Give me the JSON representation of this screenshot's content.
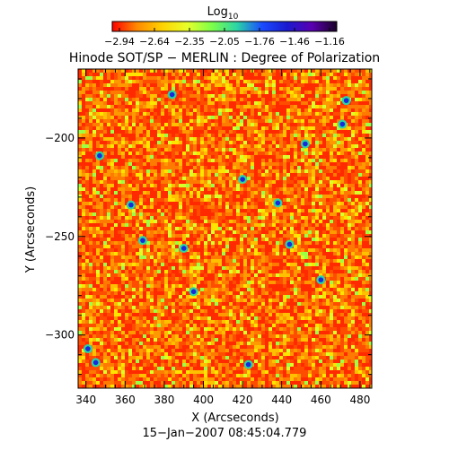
{
  "colorbar": {
    "label_main": "Log",
    "label_sub": "10",
    "tick_labels": [
      "−2.94",
      "−2.64",
      "−2.35",
      "−2.05",
      "−1.76",
      "−1.46",
      "−1.16"
    ],
    "range": [
      -2.94,
      -1.16
    ],
    "colors": [
      "#ff0000",
      "#ff8a00",
      "#ffd200",
      "#e8ff2a",
      "#7cff4a",
      "#2ad4a6",
      "#1a4cff",
      "#1a1ad0",
      "#5a00b0",
      "#1a0028"
    ]
  },
  "chart_data": {
    "type": "heatmap",
    "title": "Hinode SOT/SP − MERLIN : Degree of Polarization",
    "xlabel": "X (Arcseconds)",
    "ylabel": "Y (Arcseconds)",
    "xlim": [
      336,
      486
    ],
    "ylim": [
      -327,
      -165
    ],
    "x_ticks": [
      340,
      360,
      380,
      400,
      420,
      440,
      460,
      480
    ],
    "y_ticks": [
      -200,
      -250,
      -300
    ],
    "x_tick_labels": [
      "340",
      "360",
      "380",
      "400",
      "420",
      "440",
      "460",
      "480"
    ],
    "y_tick_labels": [
      "−200",
      "−250",
      "−300"
    ],
    "value_scale": "log10",
    "value_range": [
      -2.94,
      -1.16
    ],
    "blue_patches": [
      {
        "x": 341,
        "y": -307
      },
      {
        "x": 345,
        "y": -314
      },
      {
        "x": 347,
        "y": -209
      },
      {
        "x": 363,
        "y": -234
      },
      {
        "x": 369,
        "y": -252
      },
      {
        "x": 384,
        "y": -178
      },
      {
        "x": 390,
        "y": -256
      },
      {
        "x": 395,
        "y": -278
      },
      {
        "x": 420,
        "y": -221
      },
      {
        "x": 423,
        "y": -315
      },
      {
        "x": 438,
        "y": -233
      },
      {
        "x": 444,
        "y": -254
      },
      {
        "x": 452,
        "y": -203
      },
      {
        "x": 460,
        "y": -272
      },
      {
        "x": 471,
        "y": -193
      },
      {
        "x": 473,
        "y": -181
      }
    ]
  },
  "footer": {
    "timestamp": "15−Jan−2007 08:45:04.779"
  }
}
